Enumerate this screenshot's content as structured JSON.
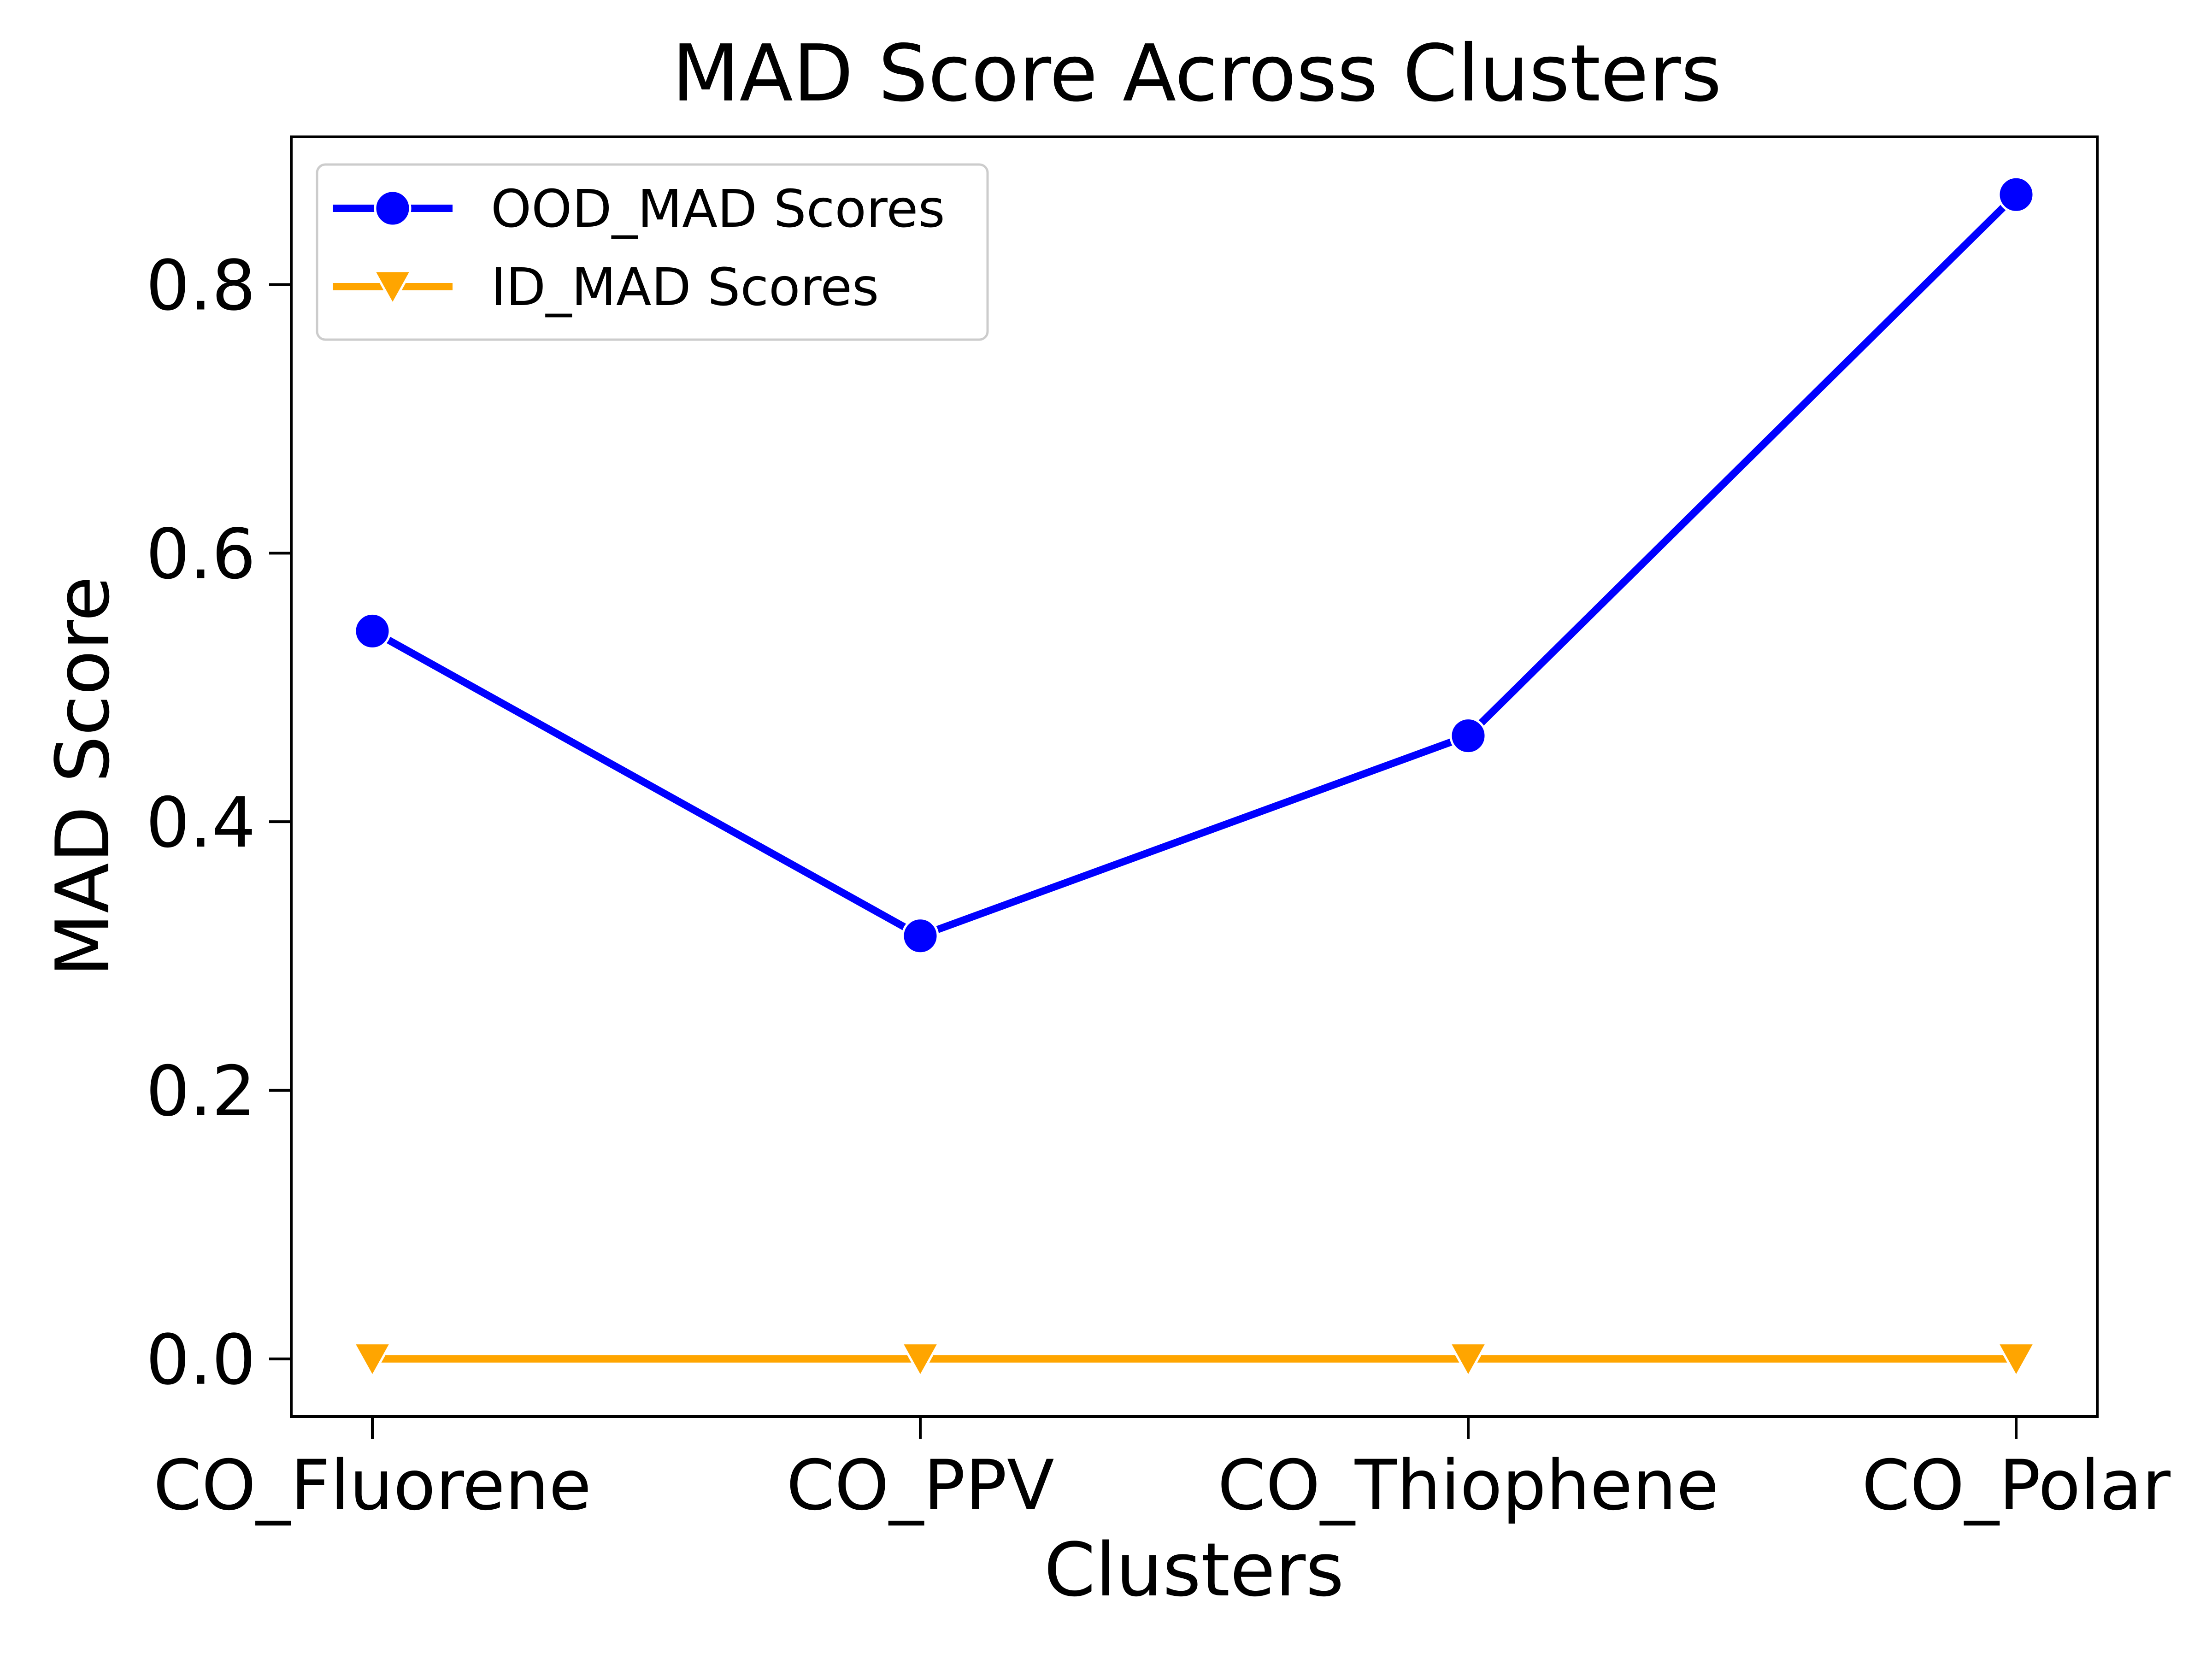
{
  "chart_data": {
    "type": "line",
    "title": "MAD Score Across Clusters",
    "xlabel": "Clusters",
    "ylabel": "MAD Score",
    "categories": [
      "CO_Fluorene",
      "CO_PPV",
      "CO_Thiophene",
      "CO_Polar"
    ],
    "ylim": [
      -0.043,
      0.91
    ],
    "yticks": [
      0.0,
      0.2,
      0.4,
      0.6,
      0.8
    ],
    "ytick_labels": [
      "0.0",
      "0.2",
      "0.4",
      "0.6",
      "0.8"
    ],
    "grid": false,
    "legend": {
      "position": "upper-left"
    },
    "series": [
      {
        "name": "OOD_MAD Scores",
        "color": "#0000ff",
        "marker": "circle",
        "values": [
          0.542,
          0.315,
          0.464,
          0.867
        ]
      },
      {
        "name": "ID_MAD Scores",
        "color": "#ffa500",
        "marker": "triangle-down",
        "values": [
          0.0,
          0.0,
          0.0,
          0.0
        ]
      }
    ]
  }
}
